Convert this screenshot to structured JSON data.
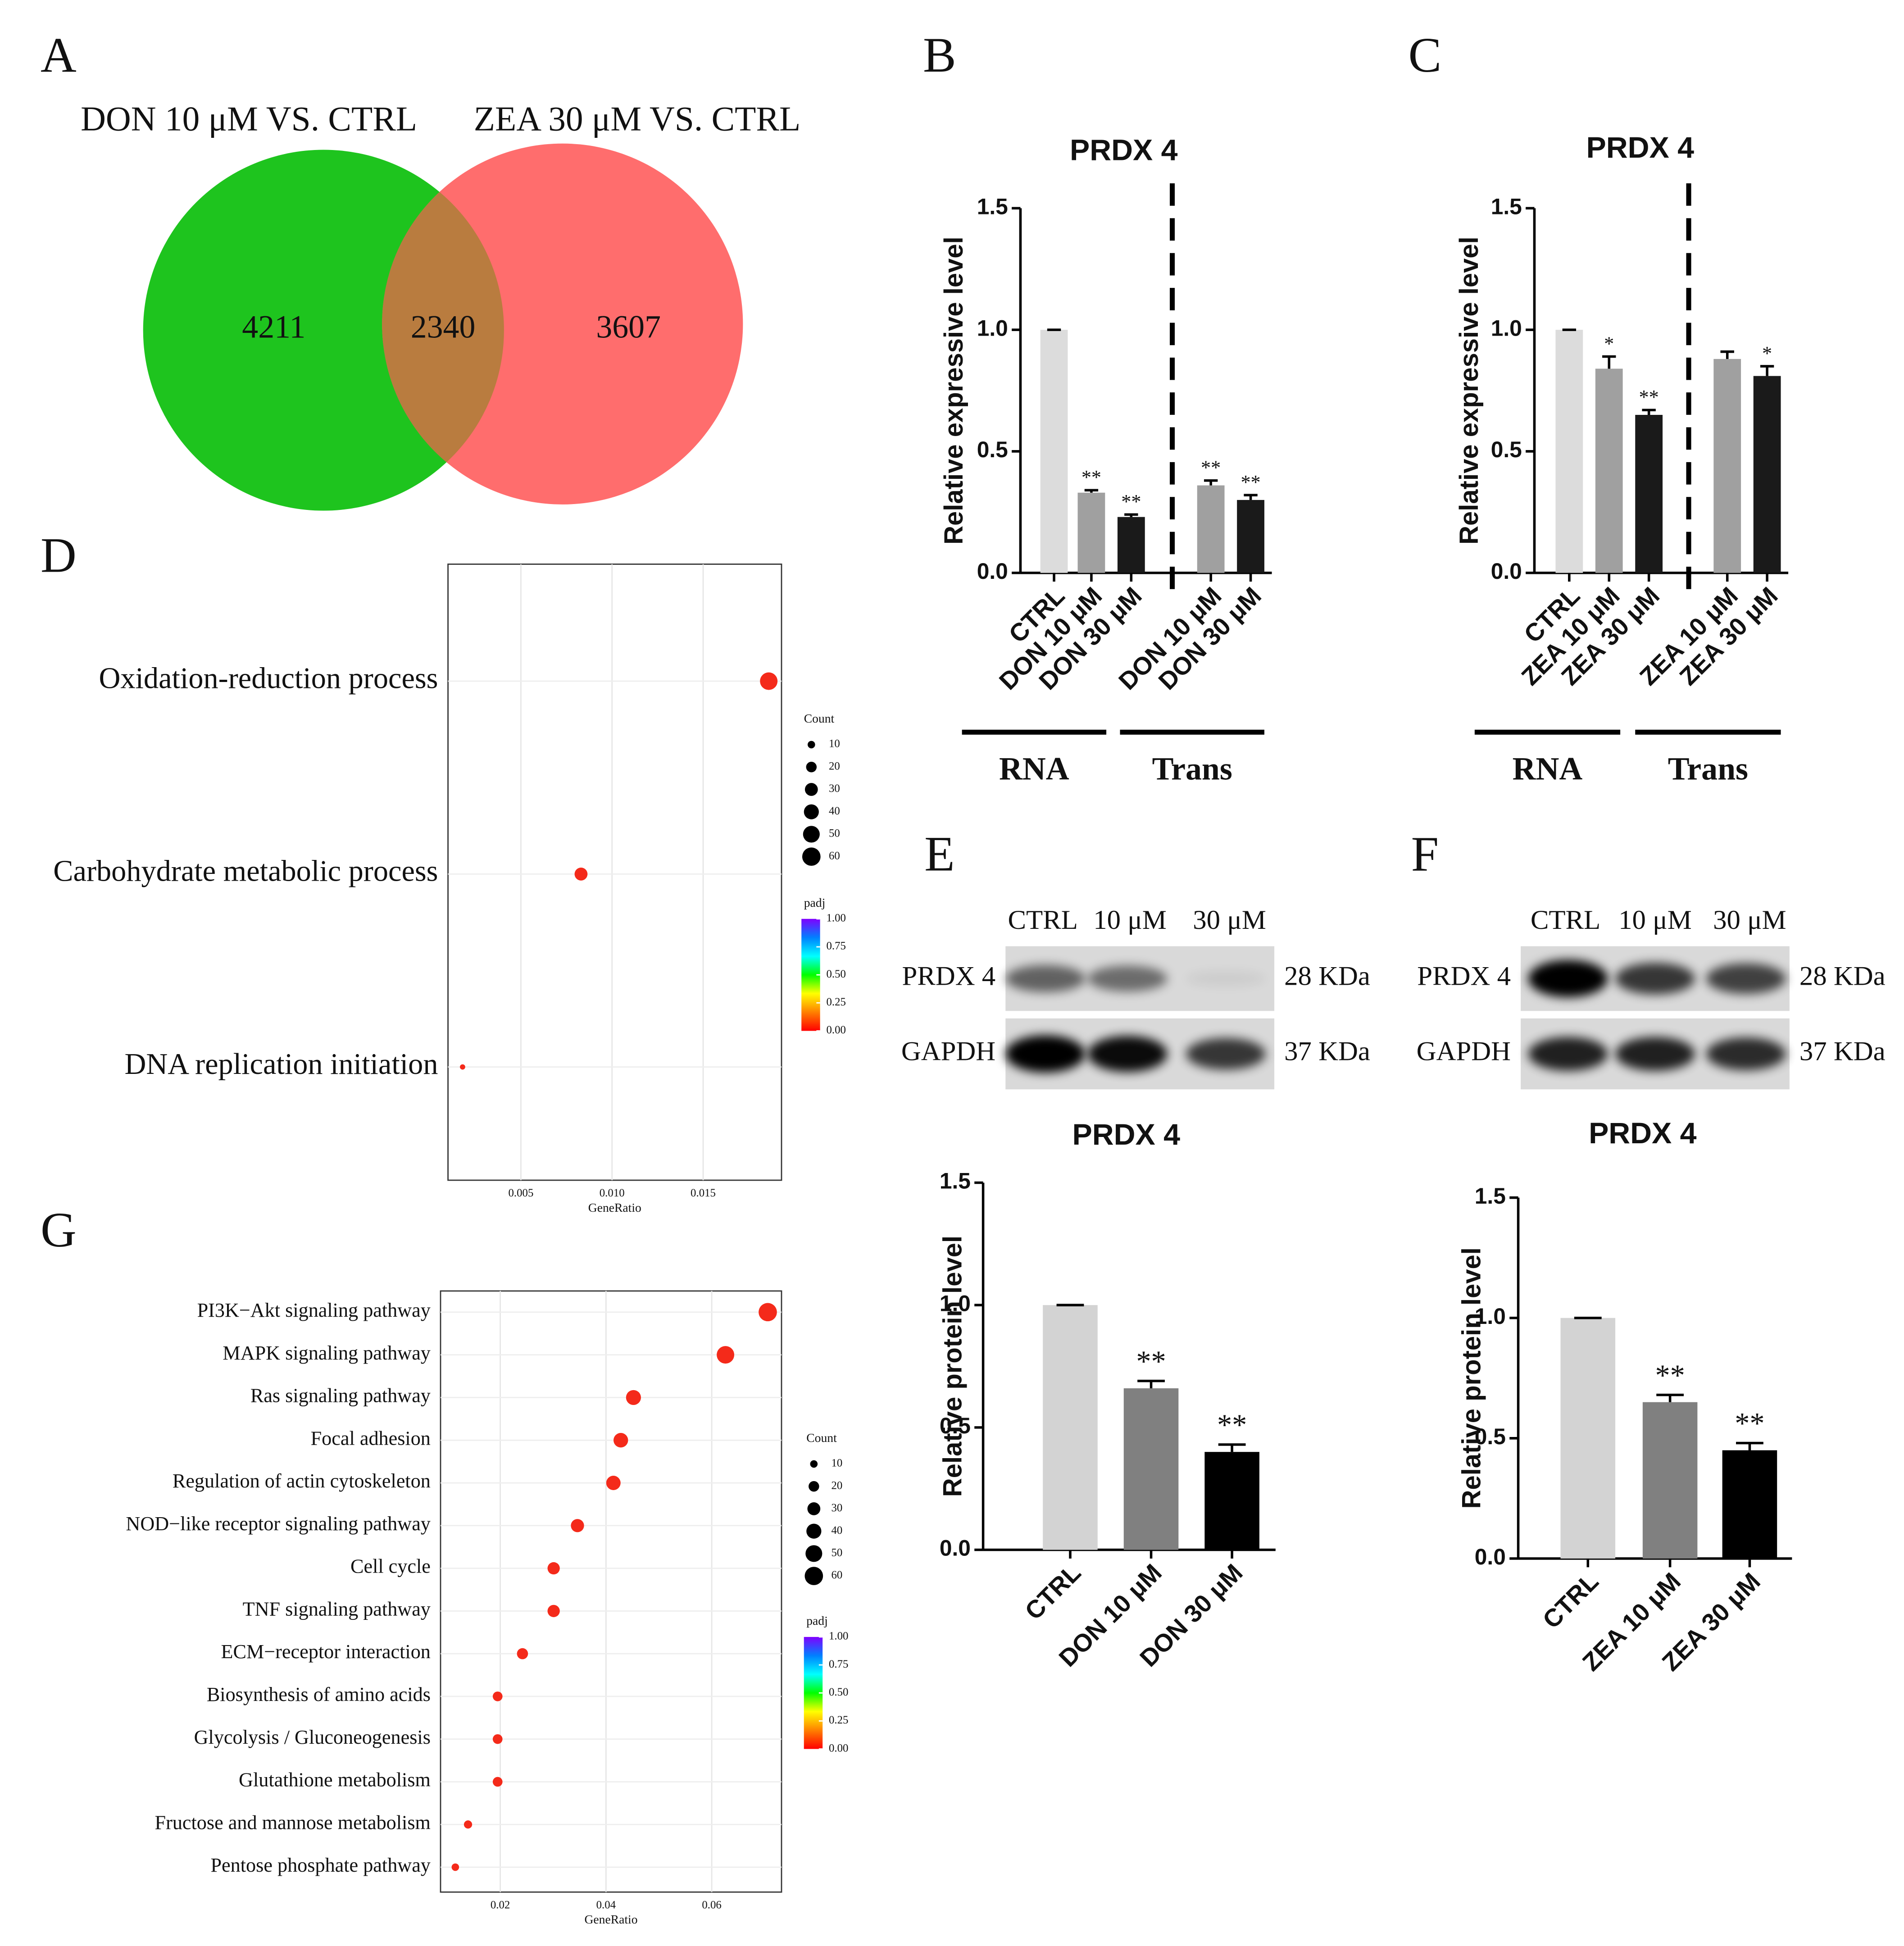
{
  "chart_data": [
    {
      "type": "venn",
      "panel": "A",
      "sets": [
        {
          "name": "DON 10 μM VS. CTRL",
          "color": "#1ec41e"
        },
        {
          "name": "ZEA 30 μM VS. CTRL",
          "color": "#ff6d6d"
        }
      ],
      "values": [
        4211,
        2340,
        3607
      ],
      "overlap_color": "#b97c3f"
    },
    {
      "type": "bar",
      "panel": "B",
      "title": "PRDX 4",
      "ylabel": "Relative expressive level",
      "categories": [
        "CTRL",
        "DON 10 μM",
        "DON 30 μM",
        "DON 10 μM",
        "DON 30 μM"
      ],
      "group": [
        "RNA",
        "RNA",
        "RNA",
        "Trans",
        "Trans"
      ],
      "values": [
        1.0,
        0.33,
        0.23,
        0.36,
        0.3
      ],
      "errors": [
        0,
        0.01,
        0.01,
        0.02,
        0.02
      ],
      "annotations": [
        null,
        "**",
        "**",
        "**",
        "**"
      ],
      "colors": [
        "#dcdcdc",
        "#a0a0a0",
        "#1a1a1a",
        "#a0a0a0",
        "#1a1a1a"
      ],
      "ylim": [
        0,
        1.5
      ],
      "yticks": [
        {
          "value": 0,
          "label": "0.0"
        },
        {
          "value": 0.5,
          "label": "0.5"
        },
        {
          "value": 1,
          "label": "1.0"
        },
        {
          "value": 1.5,
          "label": "1.5"
        }
      ]
    },
    {
      "type": "bar",
      "panel": "C",
      "title": "PRDX 4",
      "ylabel": "Relative expressive level",
      "categories": [
        "CTRL",
        "ZEA 10 μM",
        "ZEA 30 μM",
        "ZEA 10 μM",
        "ZEA 30 μM"
      ],
      "group": [
        "RNA",
        "RNA",
        "RNA",
        "Trans",
        "Trans"
      ],
      "values": [
        1.0,
        0.84,
        0.65,
        0.88,
        0.81
      ],
      "errors": [
        0,
        0.05,
        0.02,
        0.03,
        0.04
      ],
      "annotations": [
        null,
        "*",
        "**",
        null,
        "*"
      ],
      "colors": [
        "#dcdcdc",
        "#a0a0a0",
        "#1a1a1a",
        "#a0a0a0",
        "#1a1a1a"
      ],
      "ylim": [
        0,
        1.5
      ],
      "yticks": [
        {
          "value": 0,
          "label": "0.0"
        },
        {
          "value": 0.5,
          "label": "0.5"
        },
        {
          "value": 1,
          "label": "1.0"
        },
        {
          "value": 1.5,
          "label": "1.5"
        }
      ]
    },
    {
      "type": "dot",
      "panel": "D",
      "categories": [
        "Oxidation-reduction process",
        "Carbohydrate metabolic process",
        "DNA replication initiation"
      ],
      "values": [
        0.0186,
        0.0083,
        0.0018
      ],
      "sizes": [
        55,
        30,
        5
      ],
      "color": "#f42a1a",
      "xlabel": "GeneRatio",
      "xlim": [
        0.001,
        0.0193
      ],
      "xticks": [
        0.005,
        {
          "value": 0.01,
          "label": "0.010"
        },
        0.015
      ],
      "grid": true,
      "size_legend": {
        "title": "Count",
        "values": [
          10,
          20,
          30,
          40,
          50,
          60
        ]
      },
      "color_legend": {
        "title": "padj",
        "ticks": [
          {
            "value": 1,
            "label": "1.00"
          },
          {
            "value": 0.75,
            "label": "0.75"
          },
          {
            "value": 0.5,
            "label": "0.50"
          },
          {
            "value": 0.25,
            "label": "0.25"
          },
          {
            "value": 0,
            "label": "0.00"
          }
        ],
        "colors": [
          "#ff0000",
          "#ff8000",
          "#ffff00",
          "#00ff00",
          "#00ffff",
          "#0080ff",
          "#8000ff"
        ]
      }
    },
    {
      "type": "blot",
      "panel": "E",
      "columns": [
        "CTRL",
        "10 μM",
        "30 μM"
      ],
      "rows": [
        {
          "name": "PRDX 4",
          "size": "28 KDa",
          "intensity": [
            0.55,
            0.5,
            0.05
          ]
        },
        {
          "name": "GAPDH",
          "size": "37 KDa",
          "intensity": [
            1.0,
            0.95,
            0.75
          ]
        }
      ]
    },
    {
      "type": "bar",
      "title": "PRDX 4",
      "ylabel": "Relative protein level",
      "categories": [
        "CTRL",
        "DON 10 μM",
        "DON 30 μM"
      ],
      "values": [
        1.0,
        0.66,
        0.4
      ],
      "errors": [
        0,
        0.03,
        0.03
      ],
      "annotations": [
        null,
        "**",
        "**"
      ],
      "colors": [
        "#d3d3d3",
        "#808080",
        "#000000"
      ],
      "ylim": [
        0,
        1.5
      ],
      "yticks": [
        {
          "value": 0,
          "label": "0.0"
        },
        {
          "value": 0.5,
          "label": "0.5"
        },
        {
          "value": 1,
          "label": "1.0"
        },
        {
          "value": 1.5,
          "label": "1.5"
        }
      ]
    },
    {
      "type": "blot",
      "panel": "F",
      "columns": [
        "CTRL",
        "10 μM",
        "30 μM"
      ],
      "rows": [
        {
          "name": "PRDX 4",
          "size": "28 KDa",
          "intensity": [
            1.0,
            0.75,
            0.7
          ]
        },
        {
          "name": "GAPDH",
          "size": "37 KDa",
          "intensity": [
            0.85,
            0.85,
            0.8
          ]
        }
      ]
    },
    {
      "type": "bar",
      "title": "PRDX 4",
      "ylabel": "Relative protein level",
      "categories": [
        "CTRL",
        "ZEA 10 μM",
        "ZEA 30 μM"
      ],
      "values": [
        1.0,
        0.65,
        0.45
      ],
      "errors": [
        0,
        0.03,
        0.03
      ],
      "annotations": [
        null,
        "**",
        "**"
      ],
      "colors": [
        "#d3d3d3",
        "#808080",
        "#000000"
      ],
      "ylim": [
        0,
        1.5
      ],
      "yticks": [
        {
          "value": 0,
          "label": "0.0"
        },
        {
          "value": 0.5,
          "label": "0.5"
        },
        {
          "value": 1,
          "label": "1.0"
        },
        {
          "value": 1.5,
          "label": "1.5"
        }
      ]
    },
    {
      "type": "dot",
      "panel": "G",
      "categories": [
        "PI3K−Akt signaling pathway",
        "MAPK signaling pathway",
        "Ras signaling pathway",
        "Focal adhesion",
        "Regulation of actin cytoskeleton",
        "NOD−like receptor signaling pathway",
        "Cell cycle",
        "TNF signaling pathway",
        "ECM−receptor interaction",
        "Biosynthesis of amino acids",
        "Glycolysis / Gluconeogenesis",
        "Glutathione metabolism",
        "Fructose and mannose metabolism",
        "Pentose phosphate pathway"
      ],
      "values": [
        0.0706,
        0.0626,
        0.0452,
        0.0428,
        0.0414,
        0.0346,
        0.0301,
        0.0301,
        0.0242,
        0.0195,
        0.0195,
        0.0195,
        0.0139,
        0.0115
      ],
      "sizes": [
        60,
        55,
        40,
        38,
        37,
        31,
        27,
        27,
        22,
        17,
        17,
        17,
        12,
        10
      ],
      "color": "#f42a1a",
      "xlabel": "GeneRatio",
      "xlim": [
        0.0087,
        0.0732
      ],
      "xticks": [
        0.02,
        0.04,
        0.06
      ],
      "grid": true,
      "size_legend": {
        "title": "Count",
        "values": [
          10,
          20,
          30,
          40,
          50,
          60
        ]
      },
      "color_legend": {
        "title": "padj",
        "ticks": [
          {
            "value": 1,
            "label": "1.00"
          },
          {
            "value": 0.75,
            "label": "0.75"
          },
          {
            "value": 0.5,
            "label": "0.50"
          },
          {
            "value": 0.25,
            "label": "0.25"
          },
          {
            "value": 0,
            "label": "0.00"
          }
        ],
        "colors": [
          "#ff0000",
          "#ff8000",
          "#ffff00",
          "#00ff00",
          "#00ffff",
          "#0080ff",
          "#8000ff"
        ]
      }
    }
  ]
}
